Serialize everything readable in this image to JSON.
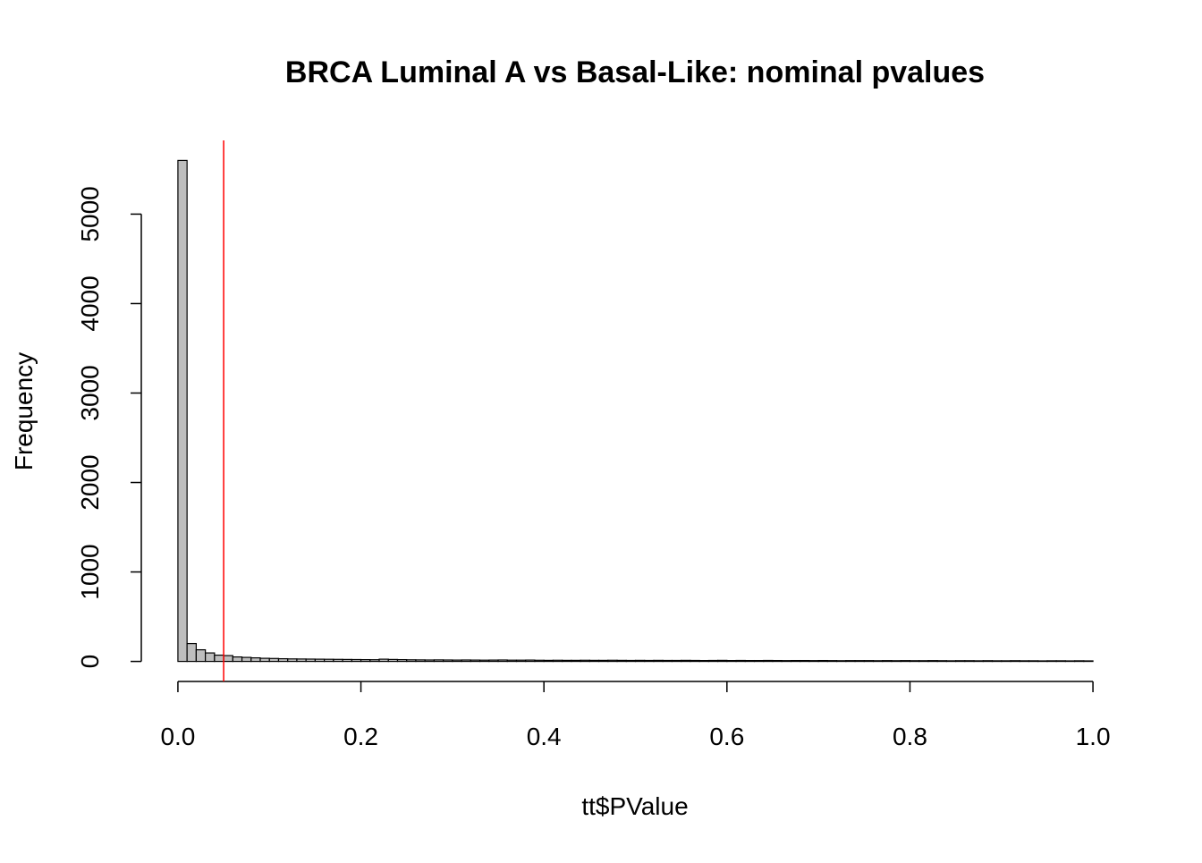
{
  "chart_data": {
    "type": "histogram",
    "title": "BRCA Luminal A vs Basal-Like: nominal pvalues",
    "x_label": "tt$PValue",
    "y_label": "Frequency",
    "bins": [
      0,
      0.01,
      0.02,
      0.03,
      0.04,
      0.05,
      0.06,
      0.07,
      0.08,
      0.09,
      0.1,
      0.11,
      0.12,
      0.13,
      0.14,
      0.15,
      0.16,
      0.17,
      0.18,
      0.19,
      0.2,
      0.21,
      0.22,
      0.23,
      0.24,
      0.25,
      0.26,
      0.27,
      0.28,
      0.29,
      0.3,
      0.31,
      0.32,
      0.33,
      0.34,
      0.35,
      0.36,
      0.37,
      0.38,
      0.39,
      0.4,
      0.41,
      0.42,
      0.43,
      0.44,
      0.45,
      0.46,
      0.47,
      0.48,
      0.49,
      0.5,
      0.51,
      0.52,
      0.53,
      0.54,
      0.55,
      0.56,
      0.57,
      0.58,
      0.59,
      0.6,
      0.61,
      0.62,
      0.63,
      0.64,
      0.65,
      0.66,
      0.67,
      0.68,
      0.69,
      0.7,
      0.71,
      0.72,
      0.73,
      0.74,
      0.75,
      0.76,
      0.77,
      0.78,
      0.79,
      0.8,
      0.81,
      0.82,
      0.83,
      0.84,
      0.85,
      0.86,
      0.87,
      0.88,
      0.89,
      0.9,
      0.91,
      0.92,
      0.93,
      0.94,
      0.95,
      0.96,
      0.97,
      0.98,
      0.99,
      1
    ],
    "values": [
      5600,
      200,
      130,
      95,
      70,
      65,
      50,
      45,
      40,
      35,
      33,
      30,
      28,
      27,
      26,
      25,
      24,
      23,
      22,
      21,
      20,
      19,
      25,
      22,
      20,
      18,
      17,
      16,
      17,
      16,
      15,
      16,
      15,
      14,
      15,
      16,
      14,
      14,
      15,
      13,
      12,
      13,
      12,
      12,
      13,
      12,
      12,
      13,
      12,
      11,
      12,
      11,
      12,
      11,
      11,
      12,
      11,
      10,
      11,
      12,
      10,
      11,
      10,
      10,
      11,
      10,
      9,
      10,
      10,
      9,
      10,
      9,
      8,
      9,
      9,
      9,
      8,
      9,
      8,
      9,
      8,
      8,
      9,
      8,
      7,
      8,
      8,
      7,
      8,
      7,
      7,
      8,
      7,
      7,
      6,
      7,
      7,
      6,
      7,
      6
    ],
    "color": "#bebebe",
    "xlim": [
      -0.04,
      1.04
    ],
    "ylim": [
      -224,
      5824
    ],
    "xticks": [
      {
        "value": 0,
        "label": "0.0"
      },
      0.2,
      0.4,
      0.6,
      0.8,
      {
        "value": 1,
        "label": "1.0"
      }
    ],
    "yticks": [
      0,
      1000,
      2000,
      3000,
      4000,
      5000
    ],
    "vline": {
      "value": 0.05,
      "color": "#ff0000"
    }
  }
}
